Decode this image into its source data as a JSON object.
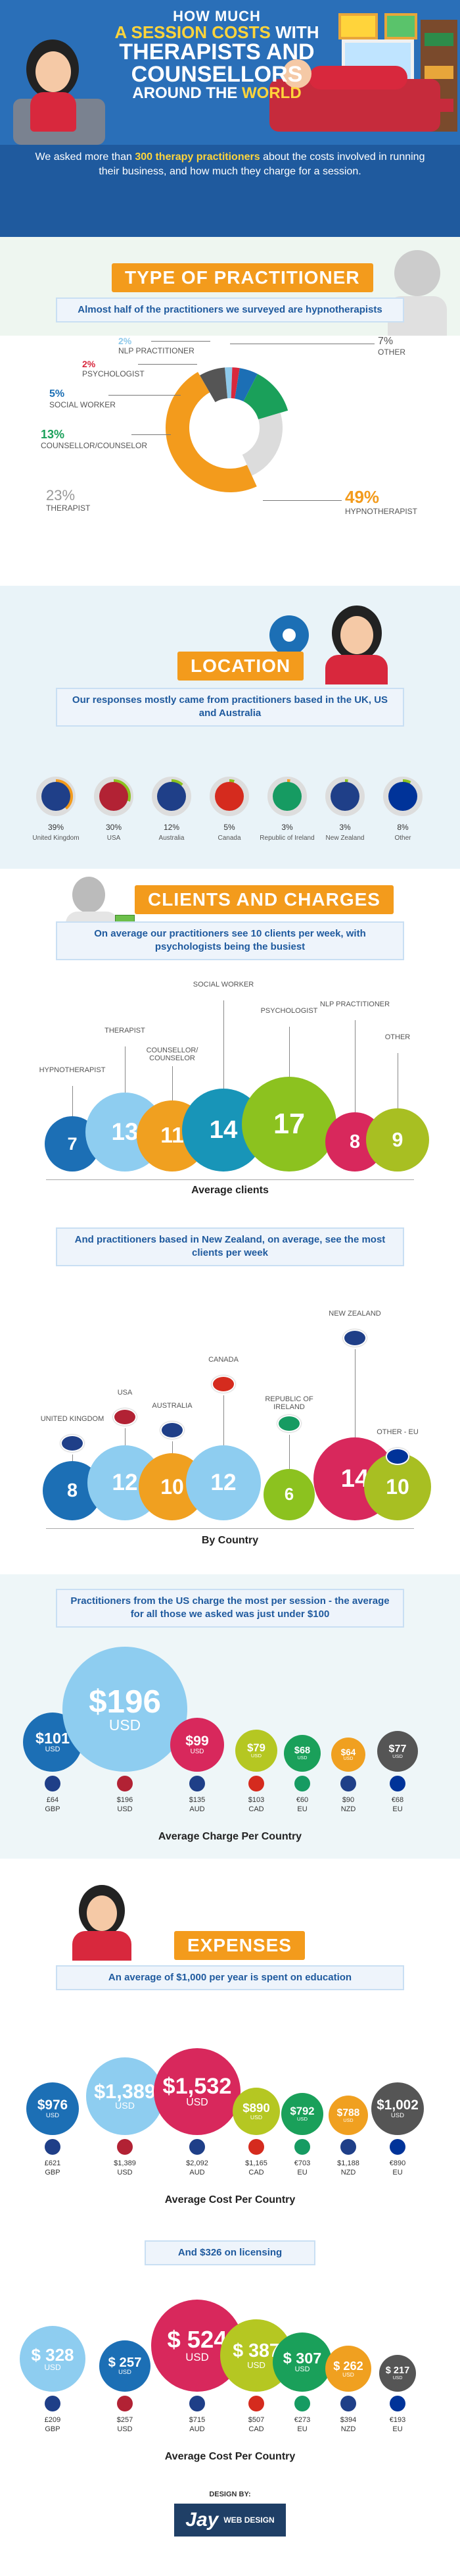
{
  "header": {
    "title_l1": "HOW MUCH",
    "title_l2a": "A SESSION COSTS",
    "title_l2b": "WITH",
    "title_l3": "THERAPISTS AND COUNSELLORS",
    "title_l4a": "AROUND THE",
    "title_l4b": "WORLD",
    "intro_a": "We asked more than",
    "intro_b": "300 therapy practitioners",
    "intro_c": "about the costs involved in running their business, and how much they charge for a session."
  },
  "practitioner": {
    "banner": "TYPE OF PRACTITIONER",
    "subtitle": "Almost half of the practitioners we surveyed are hypnotherapists",
    "items": [
      {
        "pct": "2%",
        "label": "NLP PRACTITIONER",
        "value": 2,
        "color": "#8ec9ea"
      },
      {
        "pct": "2%",
        "label": "PSYCHOLOGIST",
        "value": 2,
        "color": "#d8283d"
      },
      {
        "pct": "5%",
        "label": "SOCIAL WORKER",
        "value": 5,
        "color": "#1c6fb5"
      },
      {
        "pct": "13%",
        "label": "COUNSELLOR/COUNSELOR",
        "value": 13,
        "color": "#1aa05a"
      },
      {
        "pct": "23%",
        "label": "THERAPIST",
        "value": 23,
        "color": "#dcdcdc"
      },
      {
        "pct": "49%",
        "label": "HYPNOTHERAPIST",
        "value": 49,
        "color": "#f39b1c"
      },
      {
        "pct": "7%",
        "label": "OTHER",
        "value": 7,
        "color": "#555555"
      }
    ]
  },
  "location": {
    "banner": "LOCATION",
    "subtitle": "Our responses mostly came from practitioners based in the UK, US and Australia",
    "countries": [
      {
        "name": "United Kingdom",
        "pct": "39%",
        "value": 39
      },
      {
        "name": "USA",
        "pct": "30%",
        "value": 30
      },
      {
        "name": "Australia",
        "pct": "12%",
        "value": 12
      },
      {
        "name": "Canada",
        "pct": "5%",
        "value": 5
      },
      {
        "name": "Republic of Ireland",
        "pct": "3%",
        "value": 3
      },
      {
        "name": "New Zealand",
        "pct": "3%",
        "value": 3
      },
      {
        "name": "Other",
        "pct": "8%",
        "value": 8
      }
    ]
  },
  "clients": {
    "banner": "CLIENTS AND CHARGES",
    "subtitle": "On average our practitioners see 10 clients per week, with psychologists being the busiest",
    "by_type_title": "Average clients",
    "by_type": [
      {
        "label": "HYPNOTHERAPIST",
        "value": "7",
        "color": "#1c6fb5"
      },
      {
        "label": "THERAPIST",
        "value": "13",
        "color": "#8ecdf0"
      },
      {
        "label": "COUNSELLOR/ COUNSELOR",
        "value": "11",
        "color": "#f0a020"
      },
      {
        "label": "SOCIAL WORKER",
        "value": "14",
        "color": "#1895b8"
      },
      {
        "label": "PSYCHOLOGIST",
        "value": "17",
        "color": "#8cc21f"
      },
      {
        "label": "NLP PRACTITIONER",
        "value": "8",
        "color": "#d8285c"
      },
      {
        "label": "OTHER",
        "value": "9",
        "color": "#a8bf22"
      }
    ],
    "subtitle2": "And practitioners based in New Zealand, on average, see the most clients per week",
    "by_country_title": "By Country",
    "by_country": [
      {
        "label": "UNITED KINGDOM",
        "value": "8",
        "color": "#1c6fb5"
      },
      {
        "label": "USA",
        "value": "12",
        "color": "#8ecdf0"
      },
      {
        "label": "AUSTRALIA",
        "value": "10",
        "color": "#f0a020"
      },
      {
        "label": "CANADA",
        "value": "12",
        "color": "#8ecdf0"
      },
      {
        "label": "REPUBLIC OF IRELAND",
        "value": "6",
        "color": "#8cc21f"
      },
      {
        "label": "NEW ZEALAND",
        "value": "14",
        "color": "#d8285c"
      },
      {
        "label": "OTHER - EU",
        "value": "10",
        "color": "#a8bf22"
      }
    ]
  },
  "charges": {
    "subtitle": "Practitioners from the US charge the most per session - the average for all those we asked was just under $100",
    "title": "Average Charge Per Country",
    "items": [
      {
        "amount": "$101",
        "unit": "USD",
        "local": "£64",
        "local_unit": "GBP",
        "color": "#1c6fb5"
      },
      {
        "amount": "$196",
        "unit": "USD",
        "local": "$196",
        "local_unit": "USD",
        "color": "#8ecdf0"
      },
      {
        "amount": "$99",
        "unit": "USD",
        "local": "$135",
        "local_unit": "AUD",
        "color": "#d8285c"
      },
      {
        "amount": "$79",
        "unit": "USD",
        "local": "$103",
        "local_unit": "CAD",
        "color": "#b5c722"
      },
      {
        "amount": "$68",
        "unit": "USD",
        "local": "€60",
        "local_unit": "EU",
        "color": "#1aa05a"
      },
      {
        "amount": "$64",
        "unit": "USD",
        "local": "$90",
        "local_unit": "NZD",
        "color": "#f0a020"
      },
      {
        "amount": "$77",
        "unit": "USD",
        "local": "€68",
        "local_unit": "EU",
        "color": "#555555"
      }
    ]
  },
  "expenses": {
    "banner": "EXPENSES",
    "subtitle": "An average of $1,000 per year is spent on education",
    "education_title": "Average Cost Per Country",
    "education": [
      {
        "amount": "$976",
        "unit": "USD",
        "local": "£621",
        "local_unit": "GBP",
        "color": "#1c6fb5"
      },
      {
        "amount": "$1,389",
        "unit": "USD",
        "local": "$1,389",
        "local_unit": "USD",
        "color": "#8ecdf0"
      },
      {
        "amount": "$1,532",
        "unit": "USD",
        "local": "$2,092",
        "local_unit": "AUD",
        "color": "#d8285c"
      },
      {
        "amount": "$890",
        "unit": "USD",
        "local": "$1,165",
        "local_unit": "CAD",
        "color": "#b5c722"
      },
      {
        "amount": "$792",
        "unit": "USD",
        "local": "€703",
        "local_unit": "EU",
        "color": "#1aa05a"
      },
      {
        "amount": "$788",
        "unit": "USD",
        "local": "$1,188",
        "local_unit": "NZD",
        "color": "#f0a020"
      },
      {
        "amount": "$1,002",
        "unit": "USD",
        "local": "€890",
        "local_unit": "EU",
        "color": "#555555"
      }
    ],
    "licensing_subtitle": "And $326 on licensing",
    "licensing_title": "Average Cost Per Country",
    "licensing": [
      {
        "amount": "$ 328",
        "unit": "USD",
        "local": "£209",
        "local_unit": "GBP",
        "color": "#8ecdf0"
      },
      {
        "amount": "$ 257",
        "unit": "USD",
        "local": "$257",
        "local_unit": "USD",
        "color": "#1c6fb5"
      },
      {
        "amount": "$ 524",
        "unit": "USD",
        "local": "$715",
        "local_unit": "AUD",
        "color": "#d8285c"
      },
      {
        "amount": "$ 387",
        "unit": "USD",
        "local": "$507",
        "local_unit": "CAD",
        "color": "#b5c722"
      },
      {
        "amount": "$ 307",
        "unit": "USD",
        "local": "€273",
        "local_unit": "EU",
        "color": "#1aa05a"
      },
      {
        "amount": "$ 262",
        "unit": "USD",
        "local": "$394",
        "local_unit": "NZD",
        "color": "#f0a020"
      },
      {
        "amount": "$ 217",
        "unit": "USD",
        "local": "€193",
        "local_unit": "EU",
        "color": "#555555"
      }
    ]
  },
  "footer": {
    "design_by": "DESIGN BY:",
    "brand": "Jay",
    "brand_sub": "WEB DESIGN"
  }
}
